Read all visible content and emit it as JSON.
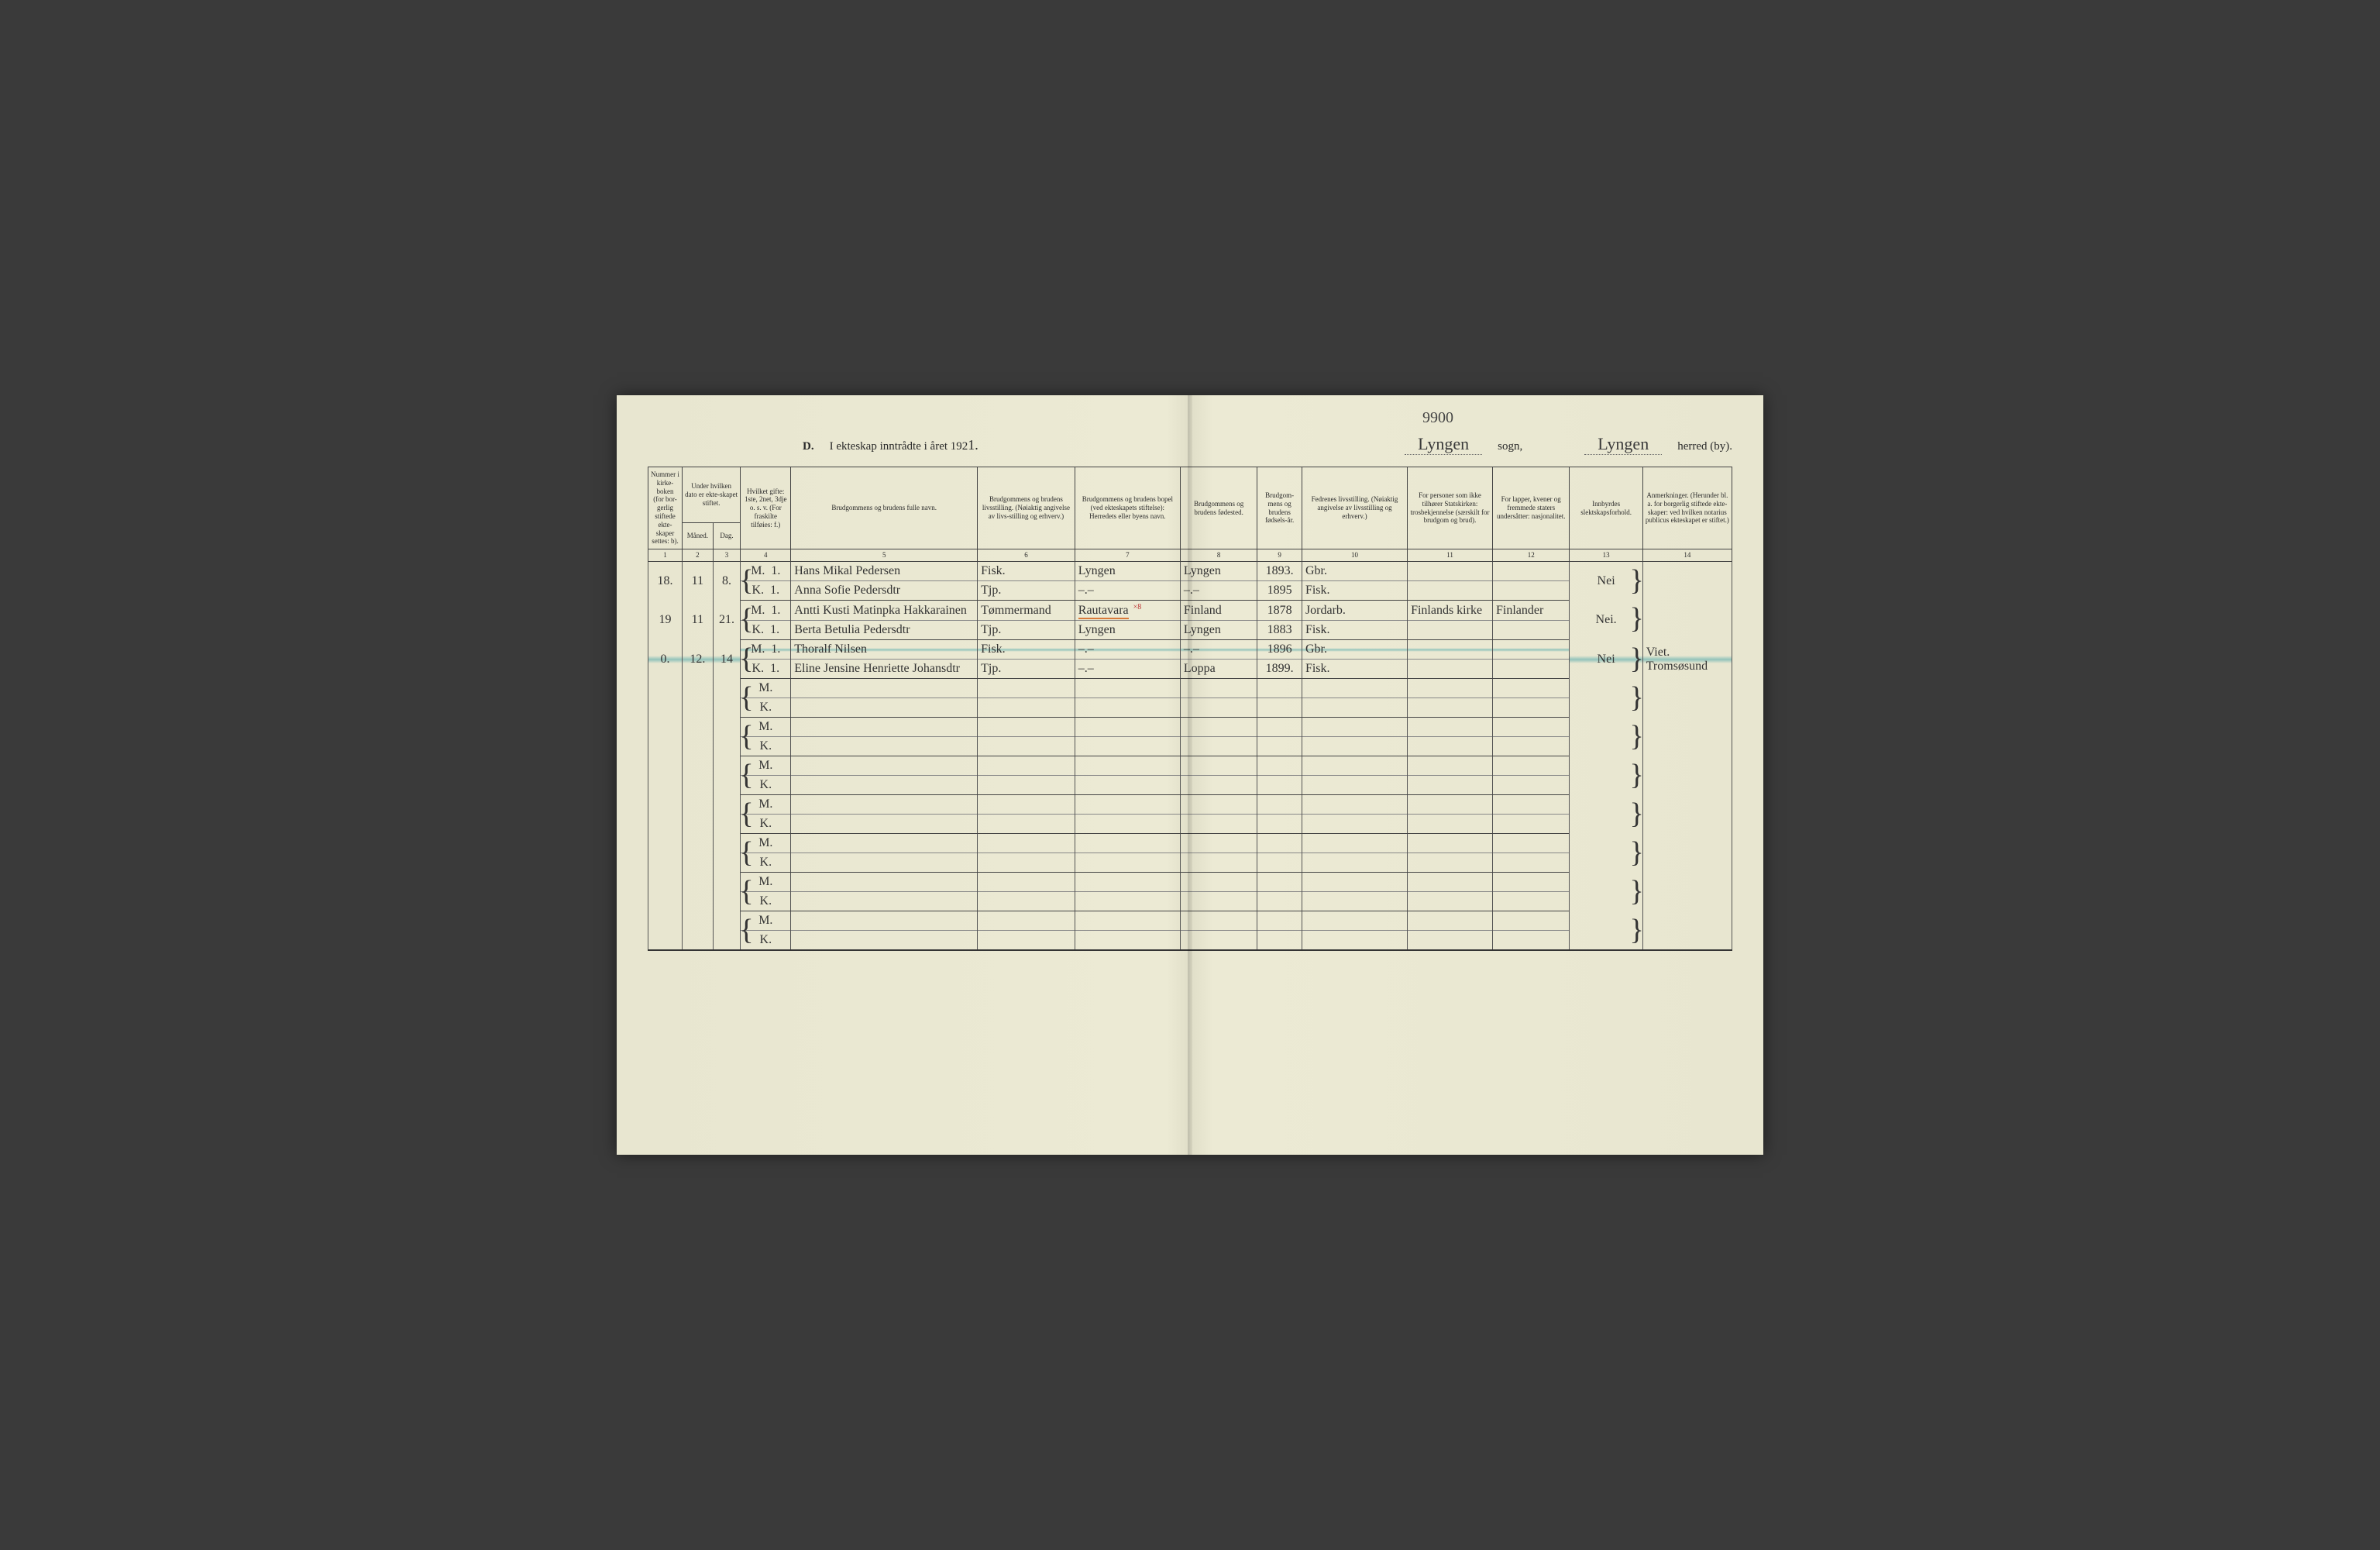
{
  "page_number_top": "9900",
  "header": {
    "prefix": "D.",
    "title": "I ekteskap inntrådte i året 192",
    "year_digit": "1.",
    "sogn_value": "Lyngen",
    "sogn_label": "sogn,",
    "herred_value": "Lyngen",
    "herred_label": "herred (by)."
  },
  "columns": [
    {
      "num": "1",
      "label": "Nummer i kirke-boken (for bor-gerlig stiftede ekte-skaper settes: b)."
    },
    {
      "num": "2",
      "label": "Under hvilken dato er ekte-skapet stiftet.\nMåned."
    },
    {
      "num": "3",
      "label": "Dag."
    },
    {
      "num": "4",
      "label": "Hvilket gifte: 1ste, 2net, 3dje o. s. v. (For fraskilte tilføies: f.)"
    },
    {
      "num": "5",
      "label": "Brudgommens og brudens fulle navn."
    },
    {
      "num": "6",
      "label": "Brudgommens og brudens livsstilling. (Nøiaktig angivelse av livs-stilling og erhverv.)"
    },
    {
      "num": "7",
      "label": "Brudgommens og brudens bopel (ved ekteskapets stiftelse): Herredets eller byens navn."
    },
    {
      "num": "8",
      "label": "Brudgommens og brudens fødested."
    },
    {
      "num": "9",
      "label": "Brudgom-mens og brudens fødsels-år."
    },
    {
      "num": "10",
      "label": "Fedrenes livsstilling. (Nøiaktig angivelse av livsstilling og erhverv.)"
    },
    {
      "num": "11",
      "label": "For personer som ikke tilhører Statskirken: trosbekjennelse (særskilt for brudgom og brud)."
    },
    {
      "num": "12",
      "label": "For lapper, kvener og fremmede staters undersåtter: nasjonalitet."
    },
    {
      "num": "13",
      "label": "Innbyrdes slektskapsforhold."
    },
    {
      "num": "14",
      "label": "Anmerkninger. (Herunder bl. a. for borgerlig stiftede ekte-skaper: ved hvilken notarius publicus ekteskapet er stiftet.)"
    }
  ],
  "entries": [
    {
      "num": "18.",
      "maaned": "11",
      "dag": "8.",
      "m": {
        "gifte": "1.",
        "navn": "Hans Mikal Pedersen",
        "livsstilling": "Fisk.",
        "bopel": "Lyngen",
        "fodested": "Lyngen",
        "aar": "1893.",
        "fedre": "Gbr.",
        "tros": "",
        "nasj": ""
      },
      "k": {
        "gifte": "1.",
        "navn": "Anna Sofie Pedersdtr",
        "livsstilling": "Tjp.",
        "bopel": "–.–",
        "fodested": "–.–",
        "aar": "1895",
        "fedre": "Fisk.",
        "tros": "",
        "nasj": ""
      },
      "slekt": "Nei",
      "anm": ""
    },
    {
      "num": "19",
      "maaned": "11",
      "dag": "21.",
      "m": {
        "gifte": "1.",
        "navn": "Antti Kusti Matinpka Hakkarainen",
        "livsstilling": "Tømmermand",
        "bopel": "Rautavara",
        "bopel_x8": true,
        "fodested": "Finland",
        "aar": "1878",
        "fedre": "Jordarb.",
        "tros": "Finlands kirke",
        "nasj": "Finlander"
      },
      "k": {
        "gifte": "1.",
        "navn": "Berta Betulia Pedersdtr",
        "livsstilling": "Tjp.",
        "bopel": "Lyngen",
        "fodested": "Lyngen",
        "aar": "1883",
        "fedre": "Fisk.",
        "tros": "",
        "nasj": ""
      },
      "slekt": "Nei.",
      "anm": ""
    },
    {
      "num": "0.",
      "maaned": "12.",
      "dag": "14",
      "m": {
        "gifte": "1.",
        "navn": "Thoralf Nilsen",
        "livsstilling": "Fisk.",
        "bopel": "–.–",
        "fodested": "–.–",
        "aar": "1896",
        "fedre": "Gbr.",
        "tros": "",
        "nasj": ""
      },
      "k": {
        "gifte": "1.",
        "navn": "Eline Jensine Henriette Johansdtr",
        "livsstilling": "Tjp.",
        "bopel": "–.–",
        "fodested": "Loppa",
        "aar": "1899.",
        "fedre": "Fisk.",
        "tros": "",
        "nasj": ""
      },
      "slekt": "Nei",
      "anm": "Viet. Tromsøsund",
      "teal": true
    }
  ],
  "empty_rows": 7,
  "style": {
    "page_bg": "#e8e6d0",
    "ink": "#2a2a2a",
    "rule": "#444",
    "orange": "#d97a3a",
    "teal": "rgba(60,160,165,0.5)",
    "script_font": "'Brush Script MT', cursive",
    "print_font": "Georgia, 'Times New Roman', serif"
  }
}
